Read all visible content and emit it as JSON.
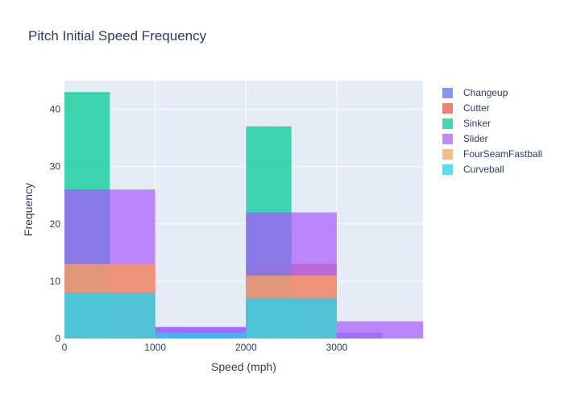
{
  "chart_data": {
    "type": "histogram",
    "title": "Pitch Initial Speed Frequency",
    "xlabel": "Speed (mph)",
    "ylabel": "Frequency",
    "xlim": [
      0,
      3950
    ],
    "ylim": [
      0,
      45
    ],
    "xticks": [
      0,
      1000,
      2000,
      3000
    ],
    "yticks": [
      0,
      10,
      20,
      30,
      40
    ],
    "grid": true,
    "barmode": "overlay",
    "legend_position": "right",
    "series": [
      {
        "name": "Changeup",
        "color": "#636efa",
        "bins": [
          {
            "x0": 0,
            "x1": 500,
            "count": 26
          },
          {
            "x0": 1000,
            "x1": 2000,
            "count": 2
          },
          {
            "x0": 2000,
            "x1": 2500,
            "count": 22
          },
          {
            "x0": 3000,
            "x1": 3500,
            "count": 1
          }
        ]
      },
      {
        "name": "Cutter",
        "color": "#ef553b",
        "bins": [
          {
            "x0": 0,
            "x1": 1000,
            "count": 13
          },
          {
            "x0": 2000,
            "x1": 3000,
            "count": 13
          }
        ]
      },
      {
        "name": "Sinker",
        "color": "#00cc96",
        "bins": [
          {
            "x0": 0,
            "x1": 500,
            "count": 43
          },
          {
            "x0": 2000,
            "x1": 2500,
            "count": 37
          }
        ]
      },
      {
        "name": "Slider",
        "color": "#ab63fa",
        "bins": [
          {
            "x0": 0,
            "x1": 1000,
            "count": 26
          },
          {
            "x0": 1000,
            "x1": 2000,
            "count": 2
          },
          {
            "x0": 2000,
            "x1": 3000,
            "count": 22
          },
          {
            "x0": 3000,
            "x1": 3950,
            "count": 3
          }
        ]
      },
      {
        "name": "FourSeamFastball",
        "color": "#ffa15a",
        "bins": [
          {
            "x0": 0,
            "x1": 1000,
            "count": 13
          },
          {
            "x0": 2000,
            "x1": 3000,
            "count": 11
          }
        ]
      },
      {
        "name": "Curveball",
        "color": "#19d3f3",
        "bins": [
          {
            "x0": 0,
            "x1": 1000,
            "count": 8
          },
          {
            "x0": 1000,
            "x1": 2000,
            "count": 1
          },
          {
            "x0": 2000,
            "x1": 3000,
            "count": 7
          }
        ]
      }
    ]
  }
}
